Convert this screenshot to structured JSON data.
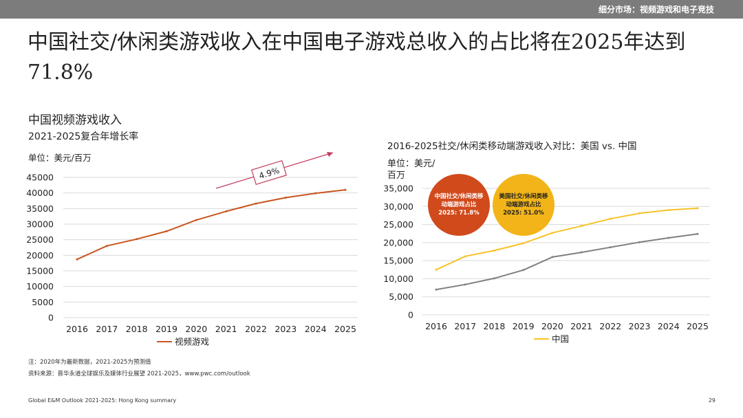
{
  "header": {
    "section_label": "细分市场：视频游戏和电子竞技"
  },
  "title": "中国社交/休闲类游戏收入在中国电子游戏总收入的占比将在2025年达到71.8%",
  "left_panel": {
    "title": "中国视频游戏收入",
    "subtitle": "2021-2025复合年增长率",
    "unit": "单位：美元/百万",
    "cagr_label": "4.9%"
  },
  "right_panel": {
    "title": "2016-2025社交/休闲类移动端游戏收入对比：美国  vs. 中国",
    "unit_line1": "单位：美元/",
    "unit_line2": "百万",
    "bubble_china": "中国社交/休闲类移动端游戏占比2025: 71.8%",
    "bubble_us": "美国社交/休闲类移动端游戏占比2025: 51.0%"
  },
  "notes": {
    "note": "注：2020年为最新数据，2021-2025为预测值",
    "source": "资料来源：普华永道全球娱乐及媒体行业展望 2021-2025，www.pwc.com/outlook"
  },
  "footer": {
    "left": "Global E&M Outlook 2021-2025: Hong Kong summary",
    "page": "29"
  },
  "colors": {
    "video_games": "#c8541e",
    "china": "#f7c225",
    "us": "#7f7f7f",
    "grid": "#d9d9d9",
    "cagr_arrow": "#c23b5b",
    "bubble_china": "#d04a1c",
    "bubble_us": "#f2b418"
  },
  "chart_data": [
    {
      "type": "line",
      "title": "中国视频游戏收入",
      "x": [
        "2016",
        "2017",
        "2018",
        "2019",
        "2020",
        "2021",
        "2022",
        "2023",
        "2024",
        "2025"
      ],
      "ylim": [
        0,
        45000
      ],
      "yticks": [
        "0",
        "5000",
        "10000",
        "15000",
        "20000",
        "25000",
        "30000",
        "35000",
        "40000",
        "45000"
      ],
      "ytick_values": [
        0,
        5000,
        10000,
        15000,
        20000,
        25000,
        30000,
        35000,
        40000,
        45000
      ],
      "grid": true,
      "legend": "bottom",
      "series": [
        {
          "name": "视频游戏",
          "color": "#c8541e",
          "values": [
            18700,
            23000,
            25200,
            27700,
            31300,
            34100,
            36600,
            38500,
            39900,
            41000
          ]
        }
      ]
    },
    {
      "type": "line",
      "title": "2016-2025社交/休闲类移动端游戏收入对比：美国  vs. 中国",
      "x": [
        "2016",
        "2017",
        "2018",
        "2019",
        "2020",
        "2021",
        "2022",
        "2023",
        "2024",
        "2025"
      ],
      "ylim": [
        0,
        35000
      ],
      "yticks": [
        "0",
        "5,000",
        "10,000",
        "15,000",
        "20,000",
        "25,000",
        "30,000",
        "35,000"
      ],
      "ytick_values": [
        0,
        5000,
        10000,
        15000,
        20000,
        25000,
        30000,
        35000
      ],
      "grid": true,
      "legend": "bottom",
      "series": [
        {
          "name": "中国",
          "color": "#f7c225",
          "values": [
            12500,
            16200,
            17800,
            19800,
            22700,
            24600,
            26600,
            28100,
            29000,
            29500
          ]
        },
        {
          "color": "#7f7f7f",
          "values": [
            7000,
            8400,
            10100,
            12400,
            16000,
            17300,
            18700,
            20100,
            21300,
            22400
          ]
        }
      ]
    }
  ]
}
